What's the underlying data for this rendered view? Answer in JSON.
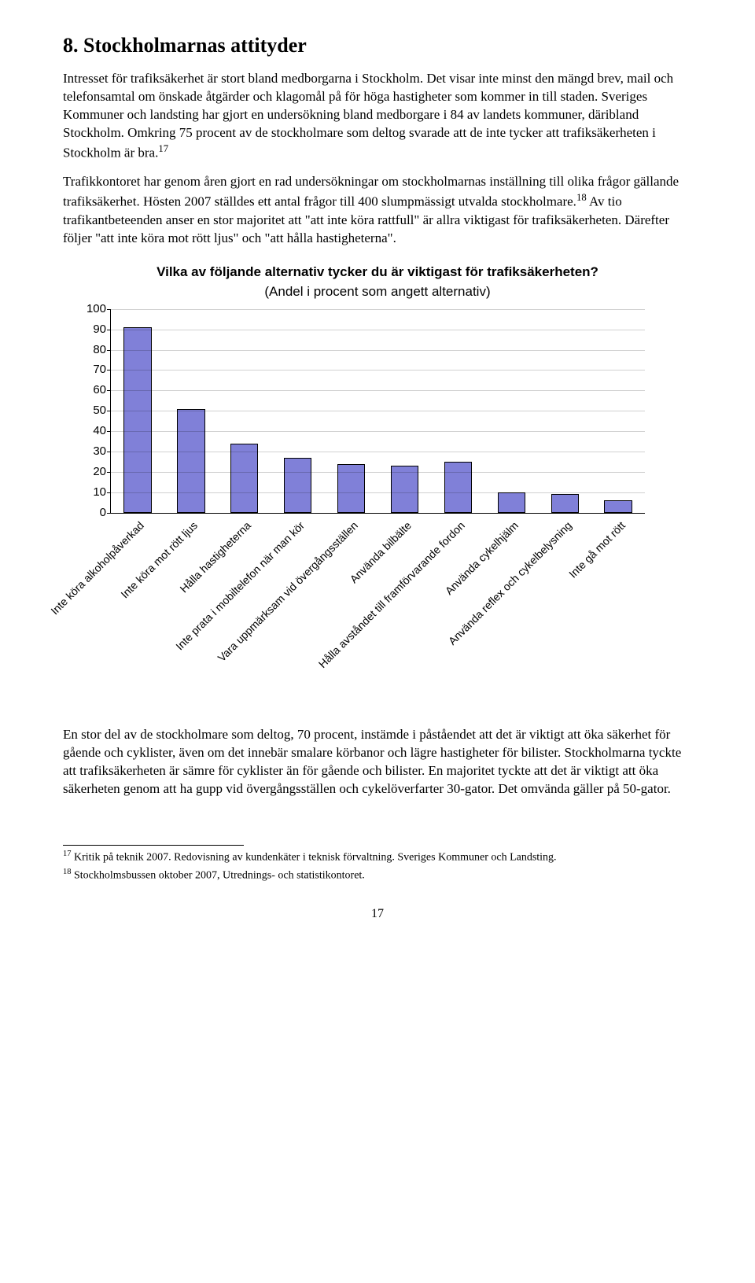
{
  "heading": "8. Stockholmarnas attityder",
  "para1_a": "Intresset för trafiksäkerhet är stort bland medborgarna i Stockholm. Det visar inte minst den mängd brev, mail och telefonsamtal om önskade åtgärder och klagomål på för höga hastigheter som kommer in till staden. Sveriges Kommuner och landsting har gjort en undersökning bland medborgare i 84 av landets kommuner, däribland Stockholm. Omkring 75 procent av de stockholmare som deltog svarade att de inte tycker att trafiksäkerheten i Stockholm är bra.",
  "para1_sup": "17",
  "para2_a": "Trafikkontoret har genom åren gjort en rad undersökningar om stockholmarnas inställning till olika frågor gällande trafiksäkerhet. Hösten 2007 ställdes ett antal frågor till 400 slumpmässigt utvalda stockholmare.",
  "para2_sup": "18",
  "para2_b": " Av tio trafikantbeteenden anser en stor majoritet att \"att inte köra rattfull\" är allra viktigast för trafiksäkerheten. Därefter följer \"att inte köra mot rött ljus\" och \"att hålla hastigheterna\".",
  "chart": {
    "type": "bar",
    "title": "Vilka av följande alternativ tycker du är viktigast för trafiksäkerheten?",
    "subtitle": "(Andel i procent som angett alternativ)",
    "categories": [
      "Inte köra alkoholpåverkad",
      "Inte köra mot rött ljus",
      "Hålla hastigheterna",
      "Inte prata i mobiltelefon när man kör",
      "Vara uppmärksam vid övergångsställen",
      "Använda bilbälte",
      "Hålla avståndet till framförvarande fordon",
      "Använda cykelhjälm",
      "Använda reflex och cykelbelysning",
      "Inte gå mot rött"
    ],
    "values": [
      91,
      51,
      34,
      27,
      24,
      23,
      25,
      10,
      9,
      6
    ],
    "ylim": [
      0,
      100
    ],
    "ytick_step": 10,
    "bar_fill": "#8080d8",
    "bar_stroke": "#000000",
    "background_color": "#ffffff",
    "grid_color": "#000000",
    "label_fontsize": 14,
    "tick_fontsize": 15,
    "title_fontsize": 17
  },
  "para3": "En stor del av de stockholmare som deltog, 70 procent, instämde i påståendet att det är viktigt att öka säkerhet för gående och cyklister, även om det innebär smalare körbanor och lägre hastigheter för bilister. Stockholmarna tyckte att trafiksäkerheten är sämre för cyklister än för gående och bilister. En majoritet tyckte att det är viktigt att öka säkerheten genom att ha gupp vid övergångsställen och cykelöverfarter 30-gator. Det omvända gäller på 50-gator.",
  "footnote17_sup": "17",
  "footnote17": " Kritik på teknik 2007. Redovisning av kundenkäter i teknisk förvaltning. Sveriges Kommuner och Landsting.",
  "footnote18_sup": "18",
  "footnote18": " Stockholmsbussen oktober 2007, Utrednings- och statistikontoret.",
  "page_number": "17"
}
